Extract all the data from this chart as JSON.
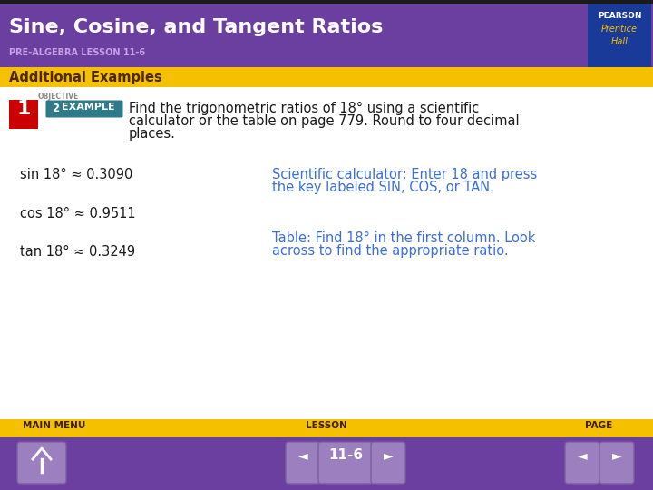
{
  "title": "Sine, Cosine, and Tangent Ratios",
  "subtitle": "PRE-ALGEBRA LESSON 11-6",
  "section_label": "Additional Examples",
  "objective_num": "1",
  "example_num": "2",
  "example_label": "EXAMPLE",
  "problem_text_line1": "Find the trigonometric ratios of 18° using a scientific",
  "problem_text_line2": "calculator or the table on page 779. Round to four decimal",
  "problem_text_line3": "places.",
  "rows": [
    {
      "left": "sin 18° ≈ 0.3090",
      "right_line1": "Scientific calculator: Enter 18 and press",
      "right_line2": "the key labeled SIN, COS, or TAN."
    },
    {
      "left": "cos 18° ≈ 0.9511",
      "right_line1": "",
      "right_line2": ""
    },
    {
      "left": "tan 18° ≈ 0.3249",
      "right_line1": "Table: Find 18° in the first column. Look",
      "right_line2": "across to find the appropriate ratio."
    }
  ],
  "header_bg": "#6B3FA0",
  "header_title_color": "#FFFFFF",
  "header_subtitle_color": "#C8A0E8",
  "section_bar_color": "#F5C000",
  "section_text_color": "#4A2800",
  "body_bg": "#FFFFFF",
  "footer_bg": "#6B3FA0",
  "footer_bar_color": "#F5C000",
  "footer_bar_text_color": "#3A2000",
  "left_col_color": "#1A1A1A",
  "right_col_color": "#3A6FD8",
  "objective_bg": "#CC0000",
  "example_bg": "#2D7A8A",
  "problem_text_color": "#1A1A1A",
  "nav_text": [
    "MAIN MENU",
    "LESSON",
    "PAGE"
  ],
  "nav_page": "11-6",
  "top_bar_color": "#1A1A1A",
  "pearson_bg": "#1A3A99",
  "nav_btn_color": "#9B7FBF",
  "nav_btn_edge": "#7A5F9F"
}
